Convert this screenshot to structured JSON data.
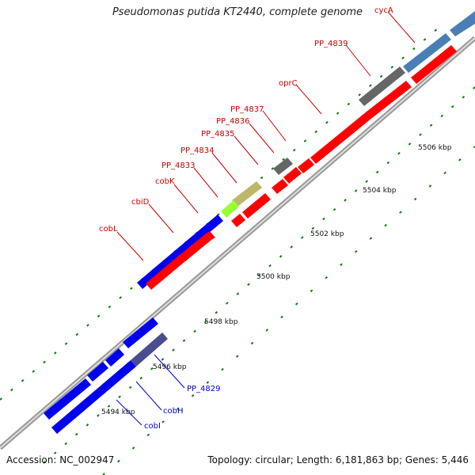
{
  "title": "Pseudomonas putida KT2440, complete genome",
  "footer": {
    "accession": "Accession: NC_002947",
    "summary": "Topology: circular; Length: 6,181,863 bp; Genes: 5,446"
  },
  "colors": {
    "forward": "#ff0000",
    "reverse": "#0000ee",
    "backbone": "#999999",
    "tick": "#006600",
    "label_forward": "#cc0000",
    "label_reverse": "#0000cc",
    "gray_gene": "#666666",
    "steel_gene": "#4a7fb5",
    "khaki_gene": "#bdb76b",
    "lime_gene": "#99ff33",
    "slate_gene": "#4b4b8f"
  },
  "scale_labels": [
    "5494 kbp",
    "5496 kbp",
    "5498 kbp",
    "5500 kbp",
    "5502 kbp",
    "5504 kbp",
    "5506 kbp"
  ],
  "gene_labels_forward": [
    "cobL",
    "cbiD",
    "cobK",
    "PP_4833",
    "PP_4834",
    "PP_4835",
    "PP_4836",
    "PP_4837",
    "oprC",
    "PP_4839",
    "cycA"
  ],
  "gene_labels_reverse": [
    "PP_4829",
    "cobH",
    "cobI"
  ]
}
